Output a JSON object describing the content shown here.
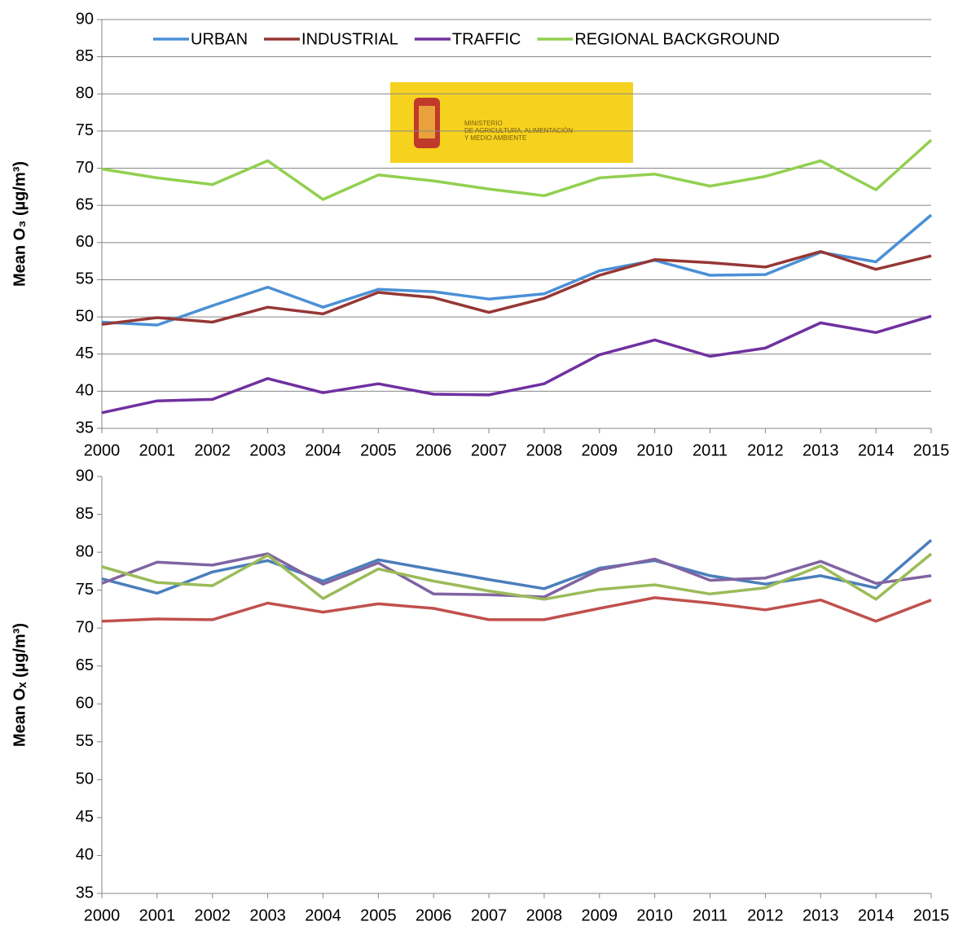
{
  "chart_data": [
    {
      "type": "line",
      "ylabel": "Mean O₃ (µg/m³)",
      "x": [
        2000,
        2001,
        2002,
        2003,
        2004,
        2005,
        2006,
        2007,
        2008,
        2009,
        2010,
        2011,
        2012,
        2013,
        2014,
        2015
      ],
      "xlim": [
        2000,
        2015
      ],
      "xticks": [
        2000,
        2001,
        2002,
        2003,
        2004,
        2005,
        2006,
        2007,
        2008,
        2009,
        2010,
        2011,
        2012,
        2013,
        2014,
        2015
      ],
      "ylim": [
        35,
        90
      ],
      "yticks": [
        35,
        40,
        45,
        50,
        55,
        60,
        65,
        70,
        75,
        80,
        85,
        90
      ],
      "grid": true,
      "legend": "top",
      "annotation": [
        "MINISTERIO",
        "DE AGRICULTURA, ALIMENTACIÓN",
        "Y MEDIO AMBIENTE"
      ],
      "series": [
        {
          "name": "URBAN",
          "color": "#4a90d6",
          "values": [
            49.3,
            48.9,
            51.5,
            54.0,
            51.3,
            53.7,
            53.4,
            52.4,
            53.1,
            56.2,
            57.6,
            55.6,
            55.7,
            58.7,
            57.4,
            63.7
          ]
        },
        {
          "name": "INDUSTRIAL",
          "color": "#953735",
          "values": [
            49.0,
            49.9,
            49.3,
            51.3,
            50.4,
            53.3,
            52.6,
            50.6,
            52.5,
            55.6,
            57.7,
            57.3,
            56.7,
            58.8,
            56.4,
            58.2
          ]
        },
        {
          "name": "TRAFFIC",
          "color": "#7030a0",
          "values": [
            37.1,
            38.7,
            38.9,
            41.7,
            39.8,
            41.0,
            39.6,
            39.5,
            41.0,
            44.9,
            46.9,
            44.7,
            45.8,
            49.2,
            47.9,
            50.1
          ]
        },
        {
          "name": "REGIONAL BACKGROUND",
          "color": "#92d050",
          "values": [
            69.9,
            68.7,
            67.8,
            71.0,
            65.8,
            69.1,
            68.3,
            67.2,
            66.3,
            68.7,
            69.2,
            67.6,
            68.9,
            71.0,
            67.1,
            73.8
          ]
        }
      ]
    },
    {
      "type": "line",
      "ylabel": "Mean Oₓ (µg/m³)",
      "x": [
        2000,
        2001,
        2002,
        2003,
        2004,
        2005,
        2006,
        2007,
        2008,
        2009,
        2010,
        2011,
        2012,
        2013,
        2014,
        2015
      ],
      "xlim": [
        2000,
        2015
      ],
      "xticks": [
        2000,
        2001,
        2002,
        2003,
        2004,
        2005,
        2006,
        2007,
        2008,
        2009,
        2010,
        2011,
        2012,
        2013,
        2014,
        2015
      ],
      "ylim": [
        35,
        90
      ],
      "yticks": [
        35,
        40,
        45,
        50,
        55,
        60,
        65,
        70,
        75,
        80,
        85,
        90
      ],
      "grid": false,
      "series": [
        {
          "color": "#4a7ebb",
          "values": [
            76.5,
            74.6,
            77.4,
            78.9,
            76.2,
            79.0,
            77.7,
            76.4,
            75.2,
            77.9,
            78.9,
            76.9,
            75.8,
            76.9,
            75.3,
            81.6
          ]
        },
        {
          "color": "#c0504d",
          "values": [
            70.9,
            71.2,
            71.1,
            73.3,
            72.1,
            73.2,
            72.6,
            71.1,
            71.1,
            72.6,
            74.0,
            73.3,
            72.4,
            73.7,
            70.9,
            73.7
          ]
        },
        {
          "color": "#8064a2",
          "values": [
            75.9,
            78.7,
            78.3,
            79.8,
            75.8,
            78.6,
            74.5,
            74.4,
            74.1,
            77.7,
            79.1,
            76.3,
            76.6,
            78.8,
            75.9,
            76.9
          ]
        },
        {
          "color": "#9bbb59",
          "values": [
            78.1,
            76.0,
            75.6,
            79.6,
            73.9,
            77.8,
            76.2,
            74.9,
            73.8,
            75.1,
            75.7,
            74.5,
            75.3,
            78.2,
            73.8,
            79.8
          ]
        }
      ]
    }
  ]
}
